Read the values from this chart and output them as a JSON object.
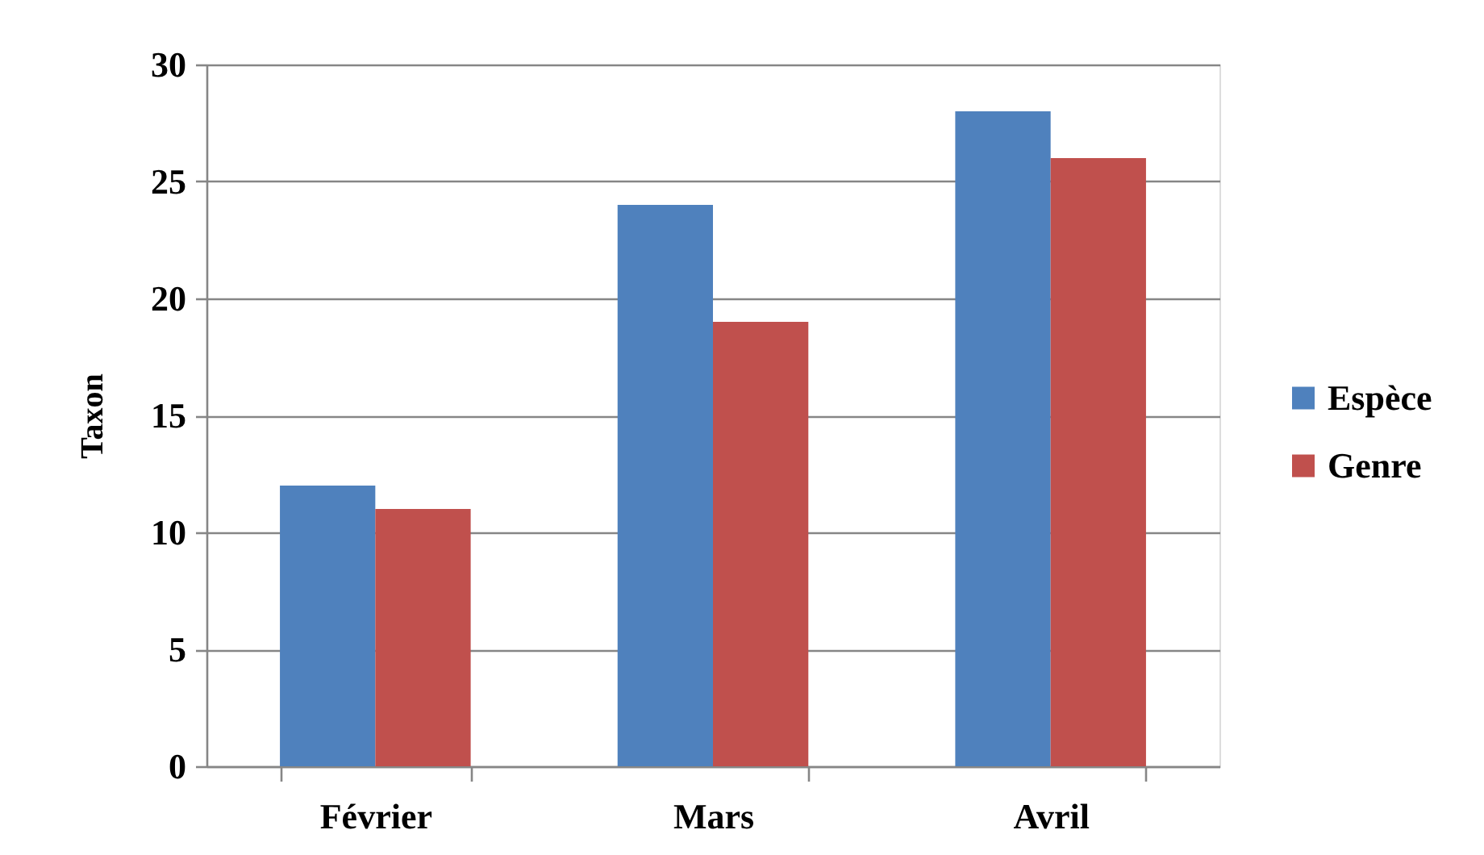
{
  "chart_data": {
    "type": "bar",
    "ylabel": "Taxon",
    "categories": [
      "Février",
      "Mars",
      "Avril"
    ],
    "series": [
      {
        "name": "Espèce",
        "color": "#4f81bd",
        "values": [
          12,
          24,
          28
        ]
      },
      {
        "name": "Genre",
        "color": "#c0504d",
        "values": [
          11,
          19,
          26
        ]
      }
    ],
    "ylim": [
      0,
      30
    ],
    "yticks": [
      0,
      5,
      10,
      15,
      20,
      25,
      30
    ],
    "grid": "y",
    "legend": "right"
  }
}
